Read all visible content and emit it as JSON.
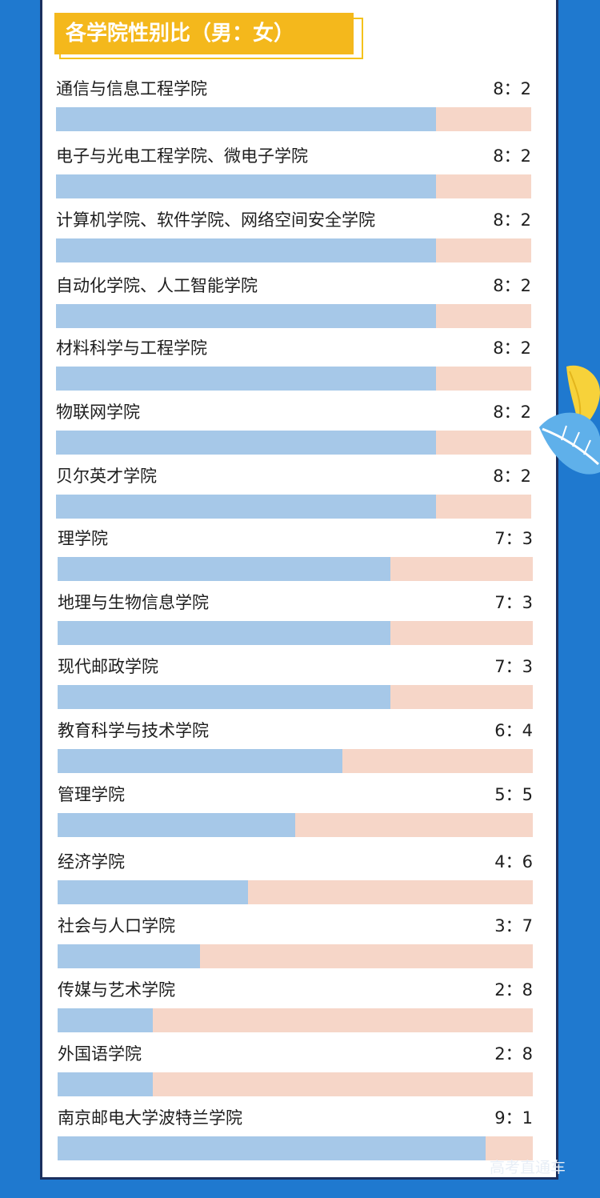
{
  "title": "各学院性别比（男：女）",
  "watermark": "高考直通车",
  "colors": {
    "background": "#1f79cf",
    "male": "#a6c8e8",
    "female": "#f6d6c8",
    "title_bg": "#f4b81c"
  },
  "chart_data": {
    "type": "bar",
    "title": "各学院性别比（男：女）",
    "series": [
      {
        "values": [
          8,
          8,
          8,
          8,
          8,
          8,
          8,
          7,
          7,
          7,
          6,
          5,
          4,
          3,
          2,
          2,
          9
        ]
      },
      {
        "values": [
          2,
          2,
          2,
          2,
          2,
          2,
          2,
          3,
          3,
          3,
          4,
          5,
          6,
          7,
          8,
          8,
          1
        ]
      }
    ],
    "rows": [
      {
        "label": "通信与信息工程学院",
        "ratio": "8：2",
        "male": 8,
        "female": 2
      },
      {
        "label": "电子与光电工程学院、微电子学院",
        "ratio": "8：2",
        "male": 8,
        "female": 2
      },
      {
        "label": "计算机学院、软件学院、网络空间安全学院",
        "ratio": "8：2",
        "male": 8,
        "female": 2
      },
      {
        "label": "自动化学院、人工智能学院",
        "ratio": "8：2",
        "male": 8,
        "female": 2
      },
      {
        "label": "材料科学与工程学院",
        "ratio": "8：2",
        "male": 8,
        "female": 2
      },
      {
        "label": "物联网学院",
        "ratio": "8：2",
        "male": 8,
        "female": 2
      },
      {
        "label": "贝尔英才学院",
        "ratio": "8：2",
        "male": 8,
        "female": 2
      },
      {
        "label": "理学院",
        "ratio": "7：3",
        "male": 7,
        "female": 3
      },
      {
        "label": "地理与生物信息学院",
        "ratio": "7：3",
        "male": 7,
        "female": 3
      },
      {
        "label": "现代邮政学院",
        "ratio": "7：3",
        "male": 7,
        "female": 3
      },
      {
        "label": "教育科学与技术学院",
        "ratio": "6：4",
        "male": 6,
        "female": 4
      },
      {
        "label": "管理学院",
        "ratio": "5：5",
        "male": 5,
        "female": 5
      },
      {
        "label": "经济学院",
        "ratio": "4：6",
        "male": 4,
        "female": 6
      },
      {
        "label": "社会与人口学院",
        "ratio": "3：7",
        "male": 3,
        "female": 7
      },
      {
        "label": "传媒与艺术学院",
        "ratio": "2：8",
        "male": 2,
        "female": 8
      },
      {
        "label": "外国语学院",
        "ratio": "2：8",
        "male": 2,
        "female": 8
      },
      {
        "label": "南京邮电大学波特兰学院",
        "ratio": "9：1",
        "male": 9,
        "female": 1
      }
    ]
  }
}
